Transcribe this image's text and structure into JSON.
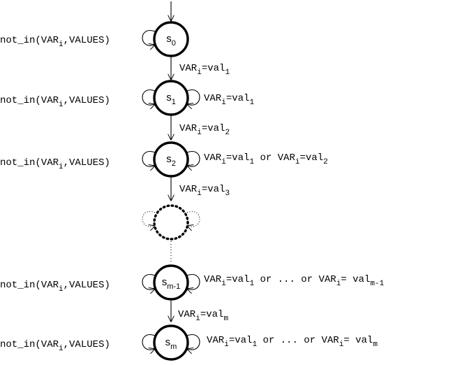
{
  "states": [
    {
      "id": "s0",
      "base": "s",
      "sub": "0"
    },
    {
      "id": "s1",
      "base": "s",
      "sub": "1"
    },
    {
      "id": "s2",
      "base": "s",
      "sub": "2"
    },
    {
      "id": "s_ellipsis",
      "base": "",
      "sub": ""
    },
    {
      "id": "s_m-1",
      "base": "s",
      "sub": "m-1"
    },
    {
      "id": "s_m",
      "base": "s",
      "sub": "m"
    }
  ],
  "left_label": {
    "pre": "not_in(VAR",
    "sub": "i",
    "post": ",VALUES)"
  },
  "transitions": {
    "t01": {
      "pre": "VAR",
      "sub": "i",
      "mid": "=val",
      "sub2": "1"
    },
    "t12": {
      "pre": "VAR",
      "sub": "i",
      "mid": "=val",
      "sub2": "2"
    },
    "t23": {
      "pre": "VAR",
      "sub": "i",
      "mid": "=val",
      "sub2": "3"
    },
    "tm": {
      "pre": "VAR",
      "sub": "i",
      "mid": "=val",
      "sub2": "m"
    }
  },
  "right_labels": {
    "s1": {
      "pre": "VAR",
      "sub": "i",
      "mid": "=val",
      "sub2": "1"
    },
    "s2": {
      "pre": "VAR",
      "sub": "i",
      "mid": "=val",
      "sub2": "1",
      "or": " or ",
      "pre2": "VAR",
      "sub3": "i",
      "mid2": "=val",
      "sub4": "2"
    },
    "sm1": {
      "pre": "VAR",
      "sub": "i",
      "mid": "=val",
      "sub2": "1",
      "or": " or ... or ",
      "pre2": "VAR",
      "sub3": "i",
      "mid2": "= val",
      "sub4": "m-1"
    },
    "sm": {
      "pre": "VAR",
      "sub": "i",
      "mid": "=val",
      "sub2": "1",
      "or": " or ... or ",
      "pre2": "VAR",
      "sub3": "i",
      "mid2": "= val",
      "sub4": "m"
    }
  }
}
